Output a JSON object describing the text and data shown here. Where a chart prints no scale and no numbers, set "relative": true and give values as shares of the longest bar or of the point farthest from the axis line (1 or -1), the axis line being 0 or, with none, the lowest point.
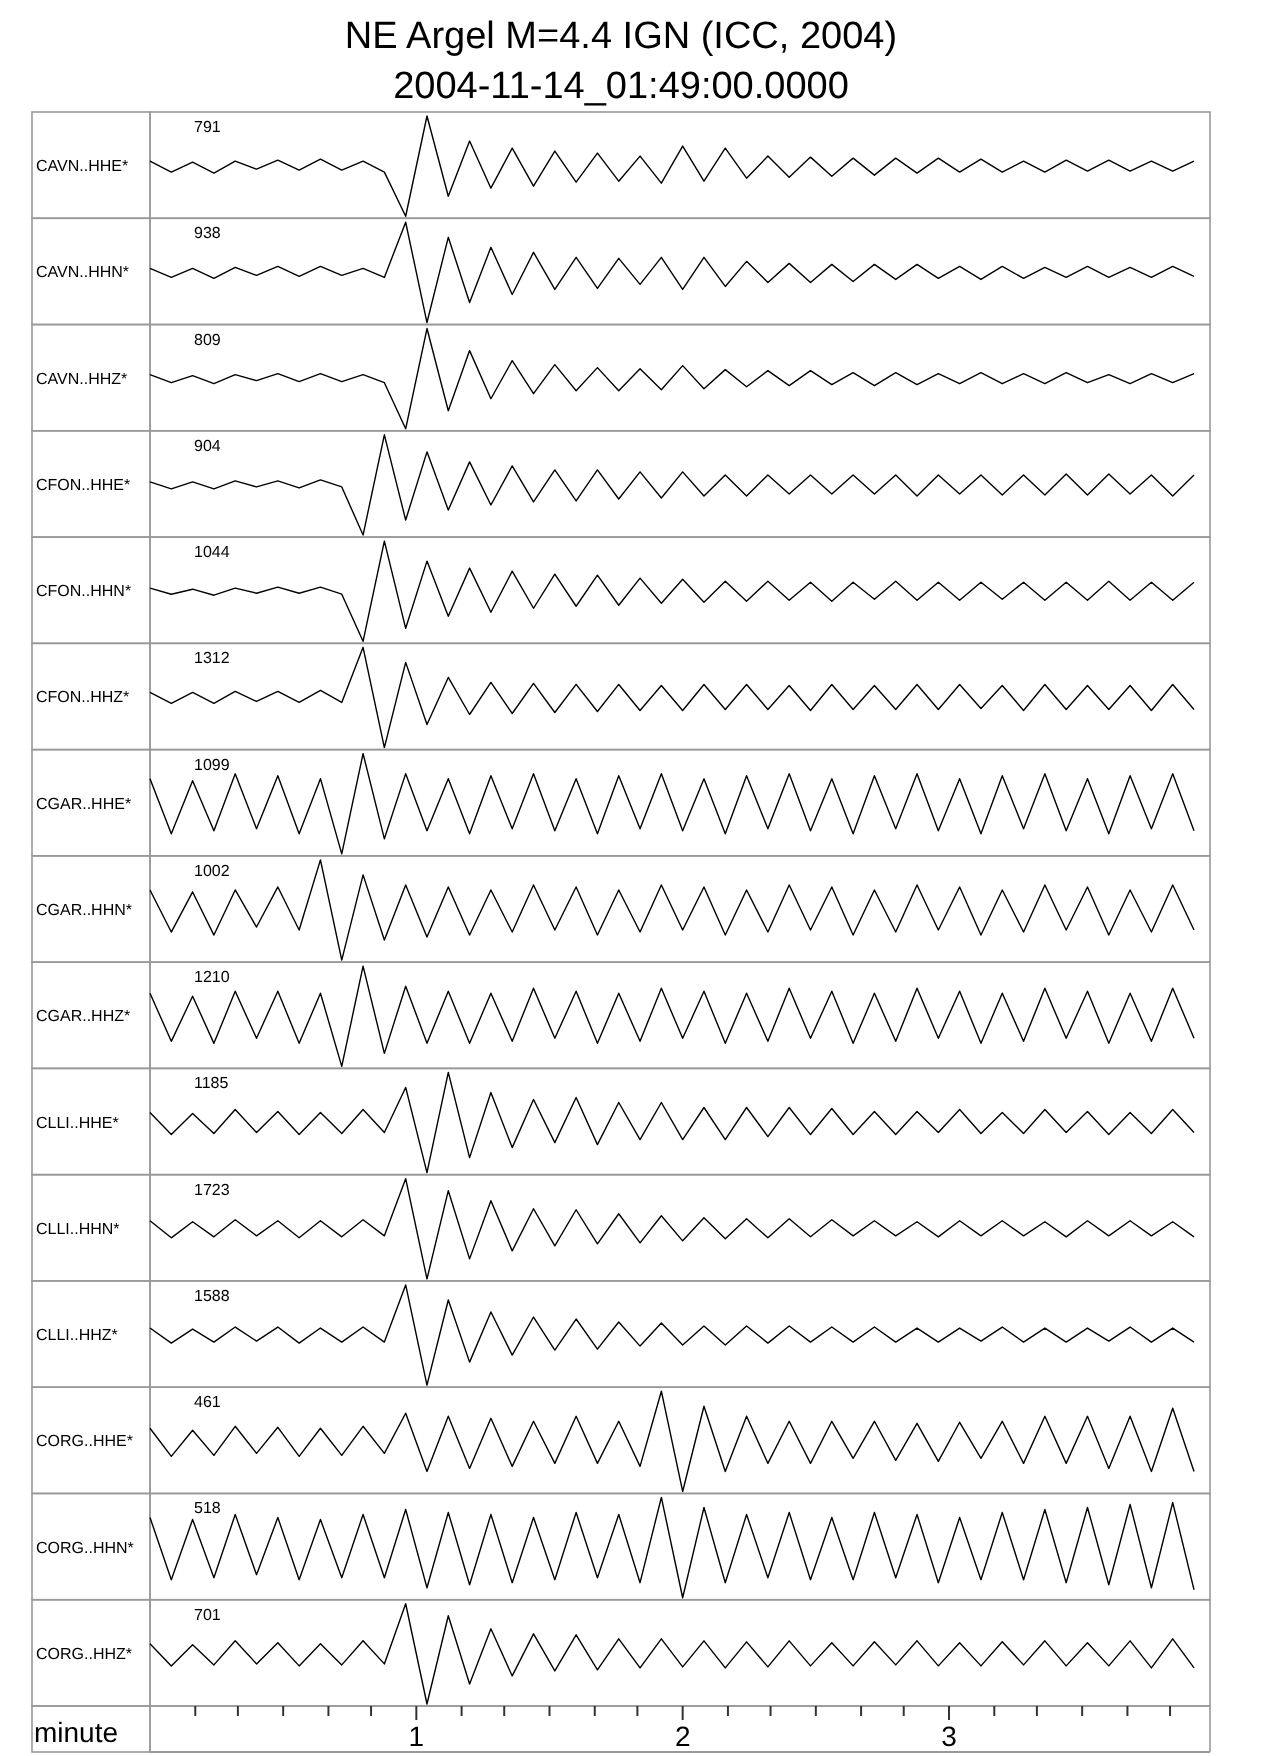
{
  "chart_data": [
    {
      "type": "line",
      "title": "NE Argel M=4.4 IGN (ICC, 2004)",
      "subtitle": "2004-11-14_01:49:00.0000",
      "ylabel": "CAVN..HHE*",
      "annotations": [
        "791"
      ],
      "relative": true,
      "color": "#000000",
      "xlim": [
        0,
        3.98
      ],
      "tick_labels": false,
      "x": [
        0,
        0.08,
        0.16,
        0.24,
        0.32,
        0.4,
        0.48,
        0.56,
        0.64,
        0.72,
        0.8,
        0.88,
        0.96,
        1.04,
        1.12,
        1.2,
        1.28,
        1.36,
        1.44,
        1.52,
        1.6,
        1.68,
        1.76,
        1.84,
        1.92,
        2,
        2.08,
        2.16,
        2.24,
        2.32,
        2.4,
        2.48,
        2.56,
        2.64,
        2.72,
        2.8,
        2.88,
        2.96,
        3.04,
        3.12,
        3.2,
        3.28,
        3.36,
        3.44,
        3.52,
        3.6,
        3.68,
        3.76,
        3.84,
        3.92
      ],
      "values": [
        0.55,
        0.44,
        0.54,
        0.43,
        0.55,
        0.47,
        0.56,
        0.46,
        0.57,
        0.46,
        0.55,
        0.44,
        0,
        1,
        0.2,
        0.75,
        0.28,
        0.68,
        0.3,
        0.65,
        0.34,
        0.63,
        0.35,
        0.6,
        0.33,
        0.7,
        0.35,
        0.68,
        0.38,
        0.6,
        0.39,
        0.59,
        0.4,
        0.58,
        0.41,
        0.58,
        0.43,
        0.58,
        0.44,
        0.57,
        0.44,
        0.55,
        0.44,
        0.56,
        0.45,
        0.56,
        0.45,
        0.55,
        0.45,
        0.55
      ]
    },
    {
      "type": "line",
      "ylabel": "CAVN..HHN*",
      "annotations": [
        "938"
      ],
      "relative": true,
      "color": "#000000",
      "xlim": [
        0,
        3.98
      ],
      "tick_labels": false,
      "x": [
        0,
        0.08,
        0.16,
        0.24,
        0.32,
        0.4,
        0.48,
        0.56,
        0.64,
        0.72,
        0.8,
        0.88,
        0.96,
        1.04,
        1.12,
        1.2,
        1.28,
        1.36,
        1.44,
        1.52,
        1.6,
        1.68,
        1.76,
        1.84,
        1.92,
        2,
        2.08,
        2.16,
        2.24,
        2.32,
        2.4,
        2.48,
        2.56,
        2.64,
        2.72,
        2.8,
        2.88,
        2.96,
        3.04,
        3.12,
        3.2,
        3.28,
        3.36,
        3.44,
        3.52,
        3.6,
        3.68,
        3.76,
        3.84,
        3.92
      ],
      "values": [
        0.54,
        0.45,
        0.54,
        0.44,
        0.55,
        0.47,
        0.56,
        0.46,
        0.56,
        0.47,
        0.54,
        0.45,
        1,
        0,
        0.85,
        0.2,
        0.75,
        0.28,
        0.7,
        0.33,
        0.65,
        0.34,
        0.64,
        0.38,
        0.65,
        0.33,
        0.65,
        0.36,
        0.61,
        0.4,
        0.59,
        0.4,
        0.58,
        0.41,
        0.58,
        0.43,
        0.58,
        0.44,
        0.56,
        0.43,
        0.56,
        0.44,
        0.55,
        0.45,
        0.56,
        0.45,
        0.55,
        0.45,
        0.56,
        0.46
      ]
    },
    {
      "type": "line",
      "ylabel": "CAVN..HHZ*",
      "annotations": [
        "809"
      ],
      "relative": true,
      "color": "#000000",
      "xlim": [
        0,
        3.98
      ],
      "tick_labels": false,
      "x": [
        0,
        0.08,
        0.16,
        0.24,
        0.32,
        0.4,
        0.48,
        0.56,
        0.64,
        0.72,
        0.8,
        0.88,
        0.96,
        1.04,
        1.12,
        1.2,
        1.28,
        1.36,
        1.44,
        1.52,
        1.6,
        1.68,
        1.76,
        1.84,
        1.92,
        2,
        2.08,
        2.16,
        2.24,
        2.32,
        2.4,
        2.48,
        2.56,
        2.64,
        2.72,
        2.8,
        2.88,
        2.96,
        3.04,
        3.12,
        3.2,
        3.28,
        3.36,
        3.44,
        3.52,
        3.6,
        3.68,
        3.76,
        3.84,
        3.92
      ],
      "values": [
        0.54,
        0.46,
        0.53,
        0.45,
        0.54,
        0.48,
        0.55,
        0.47,
        0.55,
        0.47,
        0.54,
        0.46,
        0,
        1,
        0.18,
        0.78,
        0.3,
        0.68,
        0.35,
        0.64,
        0.38,
        0.61,
        0.38,
        0.6,
        0.39,
        0.63,
        0.4,
        0.59,
        0.42,
        0.58,
        0.43,
        0.58,
        0.44,
        0.56,
        0.43,
        0.56,
        0.44,
        0.55,
        0.45,
        0.56,
        0.45,
        0.55,
        0.45,
        0.56,
        0.46,
        0.54,
        0.45,
        0.55,
        0.46,
        0.55
      ]
    },
    {
      "type": "line",
      "ylabel": "CFON..HHE*",
      "annotations": [
        "904"
      ],
      "relative": true,
      "color": "#000000",
      "xlim": [
        0,
        3.98
      ],
      "tick_labels": false,
      "x": [
        0,
        0.08,
        0.16,
        0.24,
        0.32,
        0.4,
        0.48,
        0.56,
        0.64,
        0.72,
        0.8,
        0.88,
        0.96,
        1.04,
        1.12,
        1.2,
        1.28,
        1.36,
        1.44,
        1.52,
        1.6,
        1.68,
        1.76,
        1.84,
        1.92,
        2,
        2.08,
        2.16,
        2.24,
        2.32,
        2.4,
        2.48,
        2.56,
        2.64,
        2.72,
        2.8,
        2.88,
        2.96,
        3.04,
        3.12,
        3.2,
        3.28,
        3.36,
        3.44,
        3.52,
        3.6,
        3.68,
        3.76,
        3.84,
        3.92
      ],
      "values": [
        0.53,
        0.46,
        0.53,
        0.46,
        0.54,
        0.48,
        0.54,
        0.47,
        0.55,
        0.48,
        0,
        1,
        0.15,
        0.83,
        0.25,
        0.73,
        0.3,
        0.69,
        0.33,
        0.65,
        0.34,
        0.65,
        0.36,
        0.63,
        0.37,
        0.63,
        0.39,
        0.6,
        0.39,
        0.6,
        0.41,
        0.6,
        0.41,
        0.6,
        0.41,
        0.6,
        0.39,
        0.6,
        0.41,
        0.6,
        0.4,
        0.6,
        0.4,
        0.61,
        0.4,
        0.61,
        0.41,
        0.6,
        0.39,
        0.6
      ]
    },
    {
      "type": "line",
      "ylabel": "CFON..HHN*",
      "annotations": [
        "1044"
      ],
      "relative": true,
      "color": "#000000",
      "xlim": [
        0,
        3.98
      ],
      "tick_labels": false,
      "x": [
        0,
        0.08,
        0.16,
        0.24,
        0.32,
        0.4,
        0.48,
        0.56,
        0.64,
        0.72,
        0.8,
        0.88,
        0.96,
        1.04,
        1.12,
        1.2,
        1.28,
        1.36,
        1.44,
        1.52,
        1.6,
        1.68,
        1.76,
        1.84,
        1.92,
        2,
        2.08,
        2.16,
        2.24,
        2.32,
        2.4,
        2.48,
        2.56,
        2.64,
        2.72,
        2.8,
        2.88,
        2.96,
        3.04,
        3.12,
        3.2,
        3.28,
        3.36,
        3.44,
        3.52,
        3.6,
        3.68,
        3.76,
        3.84,
        3.92
      ],
      "values": [
        0.53,
        0.47,
        0.52,
        0.46,
        0.53,
        0.48,
        0.54,
        0.48,
        0.54,
        0.47,
        0,
        1,
        0.13,
        0.8,
        0.25,
        0.73,
        0.29,
        0.7,
        0.33,
        0.67,
        0.35,
        0.66,
        0.36,
        0.63,
        0.38,
        0.62,
        0.39,
        0.6,
        0.4,
        0.6,
        0.41,
        0.59,
        0.4,
        0.59,
        0.42,
        0.6,
        0.41,
        0.59,
        0.41,
        0.59,
        0.42,
        0.59,
        0.41,
        0.59,
        0.41,
        0.6,
        0.41,
        0.59,
        0.41,
        0.59
      ]
    },
    {
      "type": "line",
      "ylabel": "CFON..HHZ*",
      "annotations": [
        "1312"
      ],
      "relative": true,
      "color": "#000000",
      "xlim": [
        0,
        3.98
      ],
      "tick_labels": false,
      "x": [
        0,
        0.08,
        0.16,
        0.24,
        0.32,
        0.4,
        0.48,
        0.56,
        0.64,
        0.72,
        0.8,
        0.88,
        0.96,
        1.04,
        1.12,
        1.2,
        1.28,
        1.36,
        1.44,
        1.52,
        1.6,
        1.68,
        1.76,
        1.84,
        1.92,
        2,
        2.08,
        2.16,
        2.24,
        2.32,
        2.4,
        2.48,
        2.56,
        2.64,
        2.72,
        2.8,
        2.88,
        2.96,
        3.04,
        3.12,
        3.2,
        3.28,
        3.36,
        3.44,
        3.52,
        3.6,
        3.68,
        3.76,
        3.84,
        3.92
      ],
      "values": [
        0.55,
        0.44,
        0.55,
        0.44,
        0.56,
        0.46,
        0.56,
        0.45,
        0.57,
        0.45,
        1,
        0,
        0.85,
        0.23,
        0.7,
        0.33,
        0.65,
        0.34,
        0.64,
        0.35,
        0.63,
        0.36,
        0.63,
        0.37,
        0.62,
        0.37,
        0.63,
        0.38,
        0.63,
        0.38,
        0.62,
        0.37,
        0.63,
        0.38,
        0.62,
        0.38,
        0.63,
        0.38,
        0.63,
        0.39,
        0.62,
        0.37,
        0.63,
        0.38,
        0.62,
        0.38,
        0.62,
        0.37,
        0.63,
        0.38
      ]
    },
    {
      "type": "line",
      "ylabel": "CGAR..HHE*",
      "annotations": [
        "1099"
      ],
      "relative": true,
      "color": "#000000",
      "xlim": [
        0,
        3.98
      ],
      "tick_labels": false,
      "x": [
        0,
        0.08,
        0.16,
        0.24,
        0.32,
        0.4,
        0.48,
        0.56,
        0.64,
        0.72,
        0.8,
        0.88,
        0.96,
        1.04,
        1.12,
        1.2,
        1.28,
        1.36,
        1.44,
        1.52,
        1.6,
        1.68,
        1.76,
        1.84,
        1.92,
        2,
        2.08,
        2.16,
        2.24,
        2.32,
        2.4,
        2.48,
        2.56,
        2.64,
        2.72,
        2.8,
        2.88,
        2.96,
        3.04,
        3.12,
        3.2,
        3.28,
        3.36,
        3.44,
        3.52,
        3.6,
        3.68,
        3.76,
        3.84,
        3.92
      ],
      "values": [
        0.75,
        0.2,
        0.73,
        0.23,
        0.8,
        0.25,
        0.78,
        0.2,
        0.75,
        0,
        1,
        0.15,
        0.8,
        0.23,
        0.75,
        0.2,
        0.78,
        0.25,
        0.8,
        0.23,
        0.75,
        0.2,
        0.78,
        0.25,
        0.8,
        0.23,
        0.75,
        0.2,
        0.78,
        0.25,
        0.8,
        0.23,
        0.75,
        0.2,
        0.78,
        0.25,
        0.8,
        0.23,
        0.75,
        0.2,
        0.78,
        0.25,
        0.8,
        0.23,
        0.75,
        0.2,
        0.78,
        0.25,
        0.8,
        0.23
      ]
    },
    {
      "type": "line",
      "ylabel": "CGAR..HHN*",
      "annotations": [
        "1002"
      ],
      "relative": true,
      "color": "#000000",
      "xlim": [
        0,
        3.98
      ],
      "tick_labels": false,
      "x": [
        0,
        0.08,
        0.16,
        0.24,
        0.32,
        0.4,
        0.48,
        0.56,
        0.64,
        0.72,
        0.8,
        0.88,
        0.96,
        1.04,
        1.12,
        1.2,
        1.28,
        1.36,
        1.44,
        1.52,
        1.6,
        1.68,
        1.76,
        1.84,
        1.92,
        2,
        2.08,
        2.16,
        2.24,
        2.32,
        2.4,
        2.48,
        2.56,
        2.64,
        2.72,
        2.8,
        2.88,
        2.96,
        3.04,
        3.12,
        3.2,
        3.28,
        3.36,
        3.44,
        3.52,
        3.6,
        3.68,
        3.76,
        3.84,
        3.92
      ],
      "values": [
        0.7,
        0.28,
        0.68,
        0.25,
        0.7,
        0.33,
        0.73,
        0.3,
        1,
        0,
        0.85,
        0.2,
        0.75,
        0.23,
        0.73,
        0.25,
        0.7,
        0.28,
        0.75,
        0.3,
        0.73,
        0.25,
        0.7,
        0.28,
        0.75,
        0.3,
        0.73,
        0.25,
        0.7,
        0.28,
        0.75,
        0.3,
        0.73,
        0.25,
        0.7,
        0.28,
        0.75,
        0.3,
        0.73,
        0.25,
        0.7,
        0.28,
        0.75,
        0.3,
        0.73,
        0.25,
        0.7,
        0.28,
        0.75,
        0.3
      ]
    },
    {
      "type": "line",
      "ylabel": "CGAR..HHZ*",
      "annotations": [
        "1210"
      ],
      "relative": true,
      "color": "#000000",
      "xlim": [
        0,
        3.98
      ],
      "tick_labels": false,
      "x": [
        0,
        0.08,
        0.16,
        0.24,
        0.32,
        0.4,
        0.48,
        0.56,
        0.64,
        0.72,
        0.8,
        0.88,
        0.96,
        1.04,
        1.12,
        1.2,
        1.28,
        1.36,
        1.44,
        1.52,
        1.6,
        1.68,
        1.76,
        1.84,
        1.92,
        2,
        2.08,
        2.16,
        2.24,
        2.32,
        2.4,
        2.48,
        2.56,
        2.64,
        2.72,
        2.8,
        2.88,
        2.96,
        3.04,
        3.12,
        3.2,
        3.28,
        3.36,
        3.44,
        3.52,
        3.6,
        3.68,
        3.76,
        3.84,
        3.92
      ],
      "values": [
        0.73,
        0.25,
        0.7,
        0.23,
        0.75,
        0.28,
        0.75,
        0.23,
        0.73,
        0,
        1,
        0.13,
        0.8,
        0.23,
        0.75,
        0.23,
        0.73,
        0.25,
        0.78,
        0.28,
        0.75,
        0.23,
        0.73,
        0.25,
        0.78,
        0.28,
        0.75,
        0.23,
        0.73,
        0.25,
        0.78,
        0.28,
        0.75,
        0.23,
        0.73,
        0.25,
        0.78,
        0.28,
        0.75,
        0.23,
        0.73,
        0.25,
        0.78,
        0.28,
        0.75,
        0.23,
        0.73,
        0.25,
        0.78,
        0.28
      ]
    },
    {
      "type": "line",
      "ylabel": "CLLI..HHE*",
      "annotations": [
        "1185"
      ],
      "relative": true,
      "color": "#000000",
      "xlim": [
        0,
        3.98
      ],
      "tick_labels": false,
      "x": [
        0,
        0.08,
        0.16,
        0.24,
        0.32,
        0.4,
        0.48,
        0.56,
        0.64,
        0.72,
        0.8,
        0.88,
        0.96,
        1.04,
        1.12,
        1.2,
        1.28,
        1.36,
        1.44,
        1.52,
        1.6,
        1.68,
        1.76,
        1.84,
        1.92,
        2,
        2.08,
        2.16,
        2.24,
        2.32,
        2.4,
        2.48,
        2.56,
        2.64,
        2.72,
        2.8,
        2.88,
        2.96,
        3.04,
        3.12,
        3.2,
        3.28,
        3.36,
        3.44,
        3.52,
        3.6,
        3.68,
        3.76,
        3.84,
        3.92
      ],
      "values": [
        0.6,
        0.38,
        0.59,
        0.39,
        0.63,
        0.4,
        0.61,
        0.38,
        0.6,
        0.39,
        0.63,
        0.4,
        0.85,
        0,
        1,
        0.15,
        0.8,
        0.25,
        0.73,
        0.3,
        0.75,
        0.28,
        0.7,
        0.33,
        0.7,
        0.33,
        0.65,
        0.33,
        0.65,
        0.36,
        0.65,
        0.38,
        0.64,
        0.38,
        0.61,
        0.38,
        0.61,
        0.4,
        0.63,
        0.39,
        0.6,
        0.39,
        0.63,
        0.4,
        0.61,
        0.38,
        0.6,
        0.39,
        0.63,
        0.4
      ]
    },
    {
      "type": "line",
      "ylabel": "CLLI..HHN*",
      "annotations": [
        "1723"
      ],
      "relative": true,
      "color": "#000000",
      "xlim": [
        0,
        3.98
      ],
      "tick_labels": false,
      "x": [
        0,
        0.08,
        0.16,
        0.24,
        0.32,
        0.4,
        0.48,
        0.56,
        0.64,
        0.72,
        0.8,
        0.88,
        0.96,
        1.04,
        1.12,
        1.2,
        1.28,
        1.36,
        1.44,
        1.52,
        1.6,
        1.68,
        1.76,
        1.84,
        1.92,
        2,
        2.08,
        2.16,
        2.24,
        2.32,
        2.4,
        2.48,
        2.56,
        2.64,
        2.72,
        2.8,
        2.88,
        2.96,
        3.04,
        3.12,
        3.2,
        3.28,
        3.36,
        3.44,
        3.52,
        3.6,
        3.68,
        3.76,
        3.84,
        3.92
      ],
      "values": [
        0.58,
        0.41,
        0.57,
        0.42,
        0.59,
        0.43,
        0.58,
        0.41,
        0.58,
        0.42,
        0.59,
        0.43,
        1,
        0,
        0.88,
        0.2,
        0.78,
        0.28,
        0.7,
        0.33,
        0.69,
        0.35,
        0.65,
        0.36,
        0.63,
        0.38,
        0.61,
        0.4,
        0.6,
        0.41,
        0.6,
        0.42,
        0.59,
        0.43,
        0.58,
        0.43,
        0.57,
        0.42,
        0.58,
        0.43,
        0.58,
        0.43,
        0.57,
        0.42,
        0.58,
        0.43,
        0.58,
        0.43,
        0.57,
        0.42
      ]
    },
    {
      "type": "line",
      "ylabel": "CLLI..HHZ*",
      "annotations": [
        "1588"
      ],
      "relative": true,
      "color": "#000000",
      "xlim": [
        0,
        3.98
      ],
      "tick_labels": false,
      "x": [
        0,
        0.08,
        0.16,
        0.24,
        0.32,
        0.4,
        0.48,
        0.56,
        0.64,
        0.72,
        0.8,
        0.88,
        0.96,
        1.04,
        1.12,
        1.2,
        1.28,
        1.36,
        1.44,
        1.52,
        1.6,
        1.68,
        1.76,
        1.84,
        1.92,
        2,
        2.08,
        2.16,
        2.24,
        2.32,
        2.4,
        2.48,
        2.56,
        2.64,
        2.72,
        2.8,
        2.88,
        2.96,
        3.04,
        3.12,
        3.2,
        3.28,
        3.36,
        3.44,
        3.52,
        3.6,
        3.68,
        3.76,
        3.84,
        3.92
      ],
      "values": [
        0.57,
        0.42,
        0.56,
        0.43,
        0.58,
        0.44,
        0.58,
        0.42,
        0.57,
        0.43,
        0.58,
        0.43,
        1,
        0,
        0.85,
        0.23,
        0.73,
        0.3,
        0.68,
        0.35,
        0.66,
        0.36,
        0.63,
        0.39,
        0.62,
        0.4,
        0.59,
        0.4,
        0.59,
        0.42,
        0.59,
        0.43,
        0.58,
        0.43,
        0.58,
        0.43,
        0.57,
        0.43,
        0.57,
        0.44,
        0.58,
        0.43,
        0.57,
        0.43,
        0.57,
        0.44,
        0.58,
        0.43,
        0.57,
        0.43
      ]
    },
    {
      "type": "line",
      "ylabel": "CORG..HHE*",
      "annotations": [
        "461"
      ],
      "relative": true,
      "color": "#000000",
      "xlim": [
        0,
        3.98
      ],
      "tick_labels": false,
      "x": [
        0,
        0.08,
        0.16,
        0.24,
        0.32,
        0.4,
        0.48,
        0.56,
        0.64,
        0.72,
        0.8,
        0.88,
        0.96,
        1.04,
        1.12,
        1.2,
        1.28,
        1.36,
        1.44,
        1.52,
        1.6,
        1.68,
        1.76,
        1.84,
        1.92,
        2,
        2.08,
        2.16,
        2.24,
        2.32,
        2.4,
        2.48,
        2.56,
        2.64,
        2.72,
        2.8,
        2.88,
        2.96,
        3.04,
        3.12,
        3.2,
        3.28,
        3.36,
        3.44,
        3.52,
        3.6,
        3.68,
        3.76,
        3.84,
        3.92
      ],
      "values": [
        0.63,
        0.35,
        0.61,
        0.36,
        0.65,
        0.38,
        0.64,
        0.35,
        0.63,
        0.36,
        0.65,
        0.38,
        0.78,
        0.2,
        0.75,
        0.23,
        0.73,
        0.25,
        0.7,
        0.28,
        0.75,
        0.28,
        0.7,
        0.25,
        1,
        0,
        0.85,
        0.2,
        0.75,
        0.28,
        0.7,
        0.28,
        0.7,
        0.33,
        0.7,
        0.31,
        0.68,
        0.3,
        0.69,
        0.33,
        0.7,
        0.28,
        0.75,
        0.28,
        0.75,
        0.23,
        0.75,
        0.2,
        0.83,
        0.2
      ]
    },
    {
      "type": "line",
      "ylabel": "CORG..HHN*",
      "annotations": [
        "518"
      ],
      "relative": true,
      "color": "#000000",
      "xlim": [
        0,
        3.98
      ],
      "tick_labels": false,
      "x": [
        0,
        0.08,
        0.16,
        0.24,
        0.32,
        0.4,
        0.48,
        0.56,
        0.64,
        0.72,
        0.8,
        0.88,
        0.96,
        1.04,
        1.12,
        1.2,
        1.28,
        1.36,
        1.44,
        1.52,
        1.6,
        1.68,
        1.76,
        1.84,
        1.92,
        2,
        2.08,
        2.16,
        2.24,
        2.32,
        2.4,
        2.48,
        2.56,
        2.64,
        2.72,
        2.8,
        2.88,
        2.96,
        3.04,
        3.12,
        3.2,
        3.28,
        3.36,
        3.44,
        3.52,
        3.6,
        3.68,
        3.76,
        3.84,
        3.92
      ],
      "values": [
        0.8,
        0.18,
        0.78,
        0.2,
        0.83,
        0.23,
        0.8,
        0.18,
        0.78,
        0.2,
        0.83,
        0.2,
        0.88,
        0.1,
        0.85,
        0.13,
        0.83,
        0.15,
        0.8,
        0.18,
        0.85,
        0.2,
        0.83,
        0.15,
        1,
        0,
        0.9,
        0.15,
        0.83,
        0.2,
        0.85,
        0.18,
        0.8,
        0.18,
        0.85,
        0.2,
        0.83,
        0.15,
        0.8,
        0.18,
        0.85,
        0.18,
        0.88,
        0.15,
        0.9,
        0.13,
        0.93,
        0.1,
        0.95,
        0.08
      ]
    },
    {
      "type": "line",
      "ylabel": "CORG..HHZ*",
      "annotations": [
        "701"
      ],
      "relative": true,
      "color": "#000000",
      "xlim": [
        0,
        3.98
      ],
      "tick_labels": "x",
      "xlabel": "minute",
      "xticks": [
        {
          "value": 0.17,
          "label": null
        },
        {
          "value": 0.33,
          "label": null
        },
        {
          "value": 0.5,
          "label": null
        },
        {
          "value": 0.67,
          "label": null
        },
        {
          "value": 0.83,
          "label": null
        },
        1,
        {
          "value": 1.17,
          "label": null
        },
        {
          "value": 1.33,
          "label": null
        },
        {
          "value": 1.5,
          "label": null
        },
        {
          "value": 1.67,
          "label": null
        },
        {
          "value": 1.83,
          "label": null
        },
        2,
        {
          "value": 2.17,
          "label": null
        },
        {
          "value": 2.33,
          "label": null
        },
        {
          "value": 2.5,
          "label": null
        },
        {
          "value": 2.67,
          "label": null
        },
        {
          "value": 2.83,
          "label": null
        },
        3,
        {
          "value": 3.17,
          "label": null
        },
        {
          "value": 3.33,
          "label": null
        },
        {
          "value": 3.5,
          "label": null
        },
        {
          "value": 3.67,
          "label": null
        },
        {
          "value": 3.83,
          "label": null
        }
      ],
      "x": [
        0,
        0.08,
        0.16,
        0.24,
        0.32,
        0.4,
        0.48,
        0.56,
        0.64,
        0.72,
        0.8,
        0.88,
        0.96,
        1.04,
        1.12,
        1.2,
        1.28,
        1.36,
        1.44,
        1.52,
        1.6,
        1.68,
        1.76,
        1.84,
        1.92,
        2,
        2.08,
        2.16,
        2.24,
        2.32,
        2.4,
        2.48,
        2.56,
        2.64,
        2.72,
        2.8,
        2.88,
        2.96,
        3.04,
        3.12,
        3.2,
        3.28,
        3.36,
        3.44,
        3.52,
        3.6,
        3.68,
        3.76,
        3.84,
        3.92
      ],
      "values": [
        0.6,
        0.38,
        0.59,
        0.39,
        0.63,
        0.4,
        0.61,
        0.38,
        0.6,
        0.39,
        0.63,
        0.4,
        1,
        0,
        0.88,
        0.2,
        0.75,
        0.28,
        0.7,
        0.33,
        0.69,
        0.34,
        0.65,
        0.36,
        0.65,
        0.37,
        0.63,
        0.36,
        0.62,
        0.37,
        0.63,
        0.38,
        0.61,
        0.38,
        0.62,
        0.39,
        0.63,
        0.38,
        0.61,
        0.38,
        0.62,
        0.39,
        0.63,
        0.38,
        0.61,
        0.38,
        0.63,
        0.36,
        0.65,
        0.36
      ]
    }
  ]
}
